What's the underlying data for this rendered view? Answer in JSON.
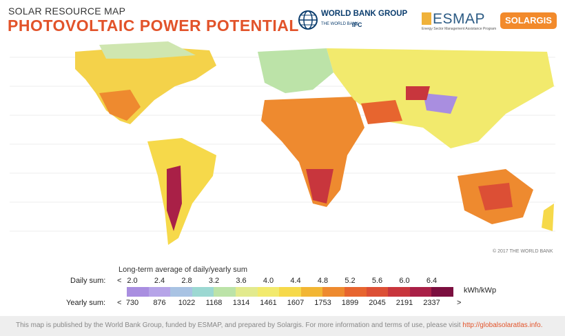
{
  "header": {
    "subtitle": "SOLAR RESOURCE MAP",
    "title": "PHOTOVOLTAIC POWER POTENTIAL"
  },
  "logos": {
    "worldbank": {
      "name": "WORLD BANK GROUP",
      "sub": "THE WORLD BANK",
      "ifc": "IFC"
    },
    "esmap": {
      "name": "ESMAP",
      "tagline": "Energy Sector Management Assistance Program"
    },
    "solargis": {
      "name": "SOLARGIS"
    }
  },
  "map": {
    "copyright": "© 2017 THE WORLD BANK",
    "colors": {
      "ocean": "#ffffff",
      "land_low": "#9ec9d8",
      "land_mid": "#f4d24a",
      "land_high": "#e7672f",
      "land_peak": "#9b1d3c"
    }
  },
  "legend": {
    "title": "Long-term average of daily/yearly sum",
    "daily_label": "Daily sum:",
    "yearly_label": "Yearly sum:",
    "lt": "<",
    "gt": ">",
    "unit": "kWh/kWp",
    "daily": [
      "2.0",
      "2.4",
      "2.8",
      "3.2",
      "3.6",
      "4.0",
      "4.4",
      "4.8",
      "5.2",
      "5.6",
      "6.0",
      "6.4"
    ],
    "yearly": [
      "730",
      "876",
      "1022",
      "1168",
      "1314",
      "1461",
      "1607",
      "1753",
      "1899",
      "2045",
      "2191",
      "2337"
    ],
    "colors": [
      "#a98ee0",
      "#b6a4e8",
      "#a9c3e3",
      "#9cd8d2",
      "#bce3a8",
      "#e2ea8e",
      "#f2ea6d",
      "#f6d94a",
      "#f2b634",
      "#ee8a2f",
      "#e7652f",
      "#dc4f35",
      "#c8363d",
      "#a92047",
      "#7b0f3f"
    ]
  },
  "footer": {
    "text": "This map is published by the World Bank Group, funded by ESMAP, and prepared by Solargis. For more information and terms of use, please visit",
    "link": "http://globalsolaratlas.info."
  }
}
